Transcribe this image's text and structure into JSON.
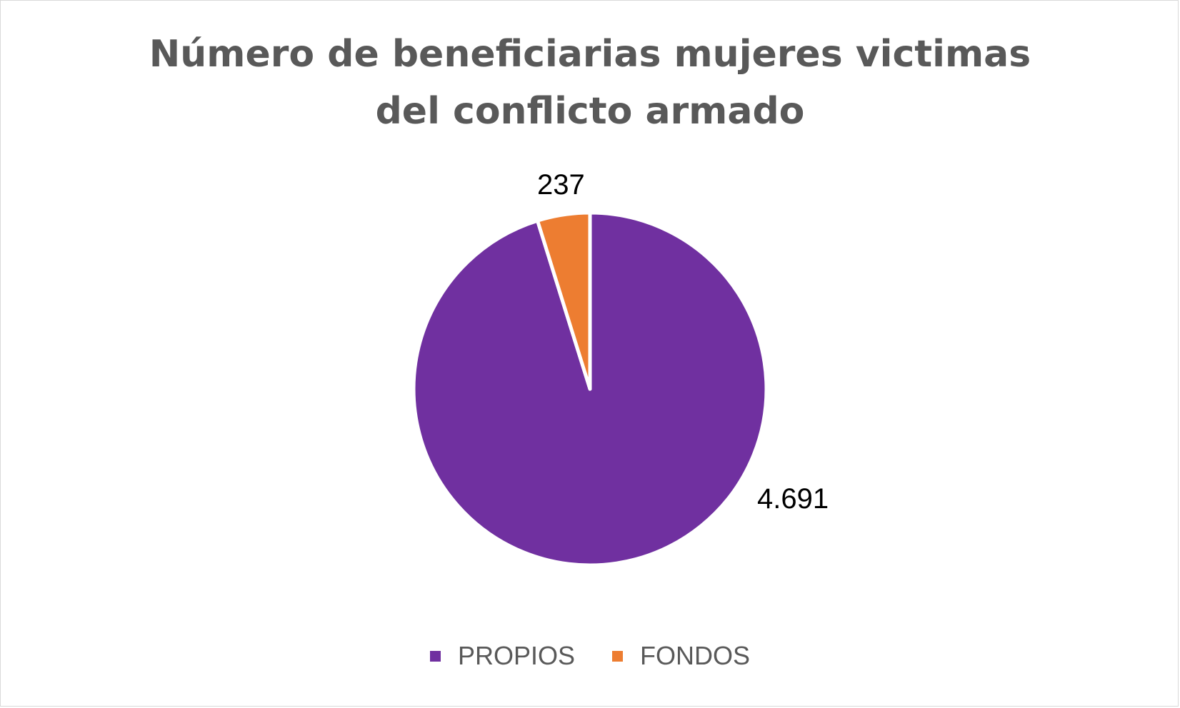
{
  "chart_data": {
    "type": "pie",
    "title": "Número de beneficiarias mujeres victimas del conflicto armado",
    "title_lines": [
      "Número de beneficiarias mujeres victimas",
      "del conflicto armado"
    ],
    "slices": [
      {
        "name": "PROPIOS",
        "value": 4691,
        "label": "4.691",
        "color": "#7030A0"
      },
      {
        "name": "FONDOS",
        "value": 237,
        "label": "237",
        "color": "#ED7D31"
      }
    ],
    "start_angle_deg": 0,
    "direction": "clockwise",
    "legend_position": "bottom"
  }
}
